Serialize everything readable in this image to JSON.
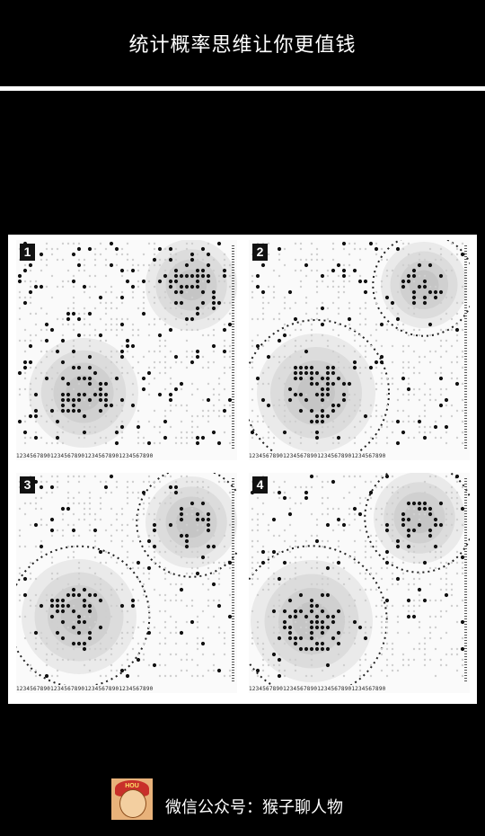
{
  "header": {
    "title": "统计概率思维让你更值钱"
  },
  "figure": {
    "panels": [
      {
        "number": "1",
        "axis_label": "1234567890123456789012345678901234567890"
      },
      {
        "number": "2",
        "axis_label": "1234567890123456789012345678901234567890"
      },
      {
        "number": "3",
        "axis_label": "1234567890123456789012345678901234567890"
      },
      {
        "number": "4",
        "axis_label": "1234567890123456789012345678901234567890"
      }
    ]
  },
  "footer": {
    "avatar_text": "HOU",
    "caption": "微信公众号：猴子聊人物"
  },
  "colors": {
    "background": "#000000",
    "divider": "#ffffff",
    "figure_bg": "#ffffff",
    "dot": "#111111",
    "shade": "#7a7a7a"
  }
}
